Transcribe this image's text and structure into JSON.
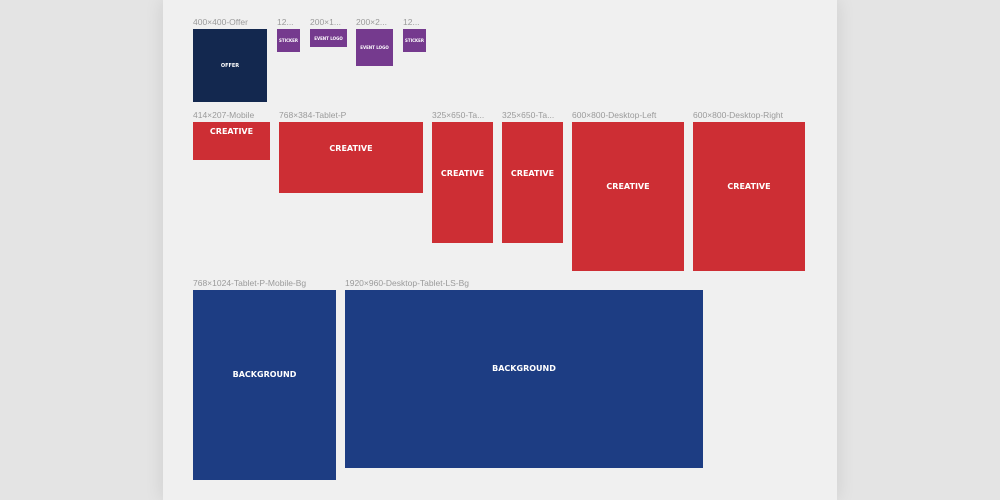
{
  "colors": {
    "page_bg": "#e4e4e4",
    "canvas_bg": "#f0f0f0",
    "offer": "#13284f",
    "sticker": "#753a8e",
    "creative": "#cd2e34",
    "background": "#1d3d83"
  },
  "row1": {
    "offer": {
      "label": "400×400-Offer",
      "text": "OFFER"
    },
    "sticker_a": {
      "label": "12...",
      "text": "STICKER"
    },
    "event_logo_a": {
      "label": "200×1...",
      "text": "EVENT LOGO"
    },
    "event_logo_b": {
      "label": "200×2...",
      "text": "EVENT LOGO"
    },
    "sticker_b": {
      "label": "12...",
      "text": "STICKER"
    }
  },
  "row2": {
    "mobile": {
      "label": "414×207-Mobile",
      "text": "CREATIVE"
    },
    "tablet_p": {
      "label": "768×384-Tablet-P",
      "text": "CREATIVE"
    },
    "tablet_a": {
      "label": "325×650-Ta...",
      "text": "CREATIVE"
    },
    "tablet_b": {
      "label": "325×650-Ta...",
      "text": "CREATIVE"
    },
    "desktop_left": {
      "label": "600×800-Desktop-Left",
      "text": "CREATIVE"
    },
    "desktop_right": {
      "label": "600×800-Desktop-Right",
      "text": "CREATIVE"
    }
  },
  "row3": {
    "bg_mobile": {
      "label": "768×1024-Tablet-P-Mobile-Bg",
      "text": "BACKGROUND"
    },
    "bg_desktop": {
      "label": "1920×960-Desktop-Tablet-LS-Bg",
      "text": "BACKGROUND"
    }
  }
}
